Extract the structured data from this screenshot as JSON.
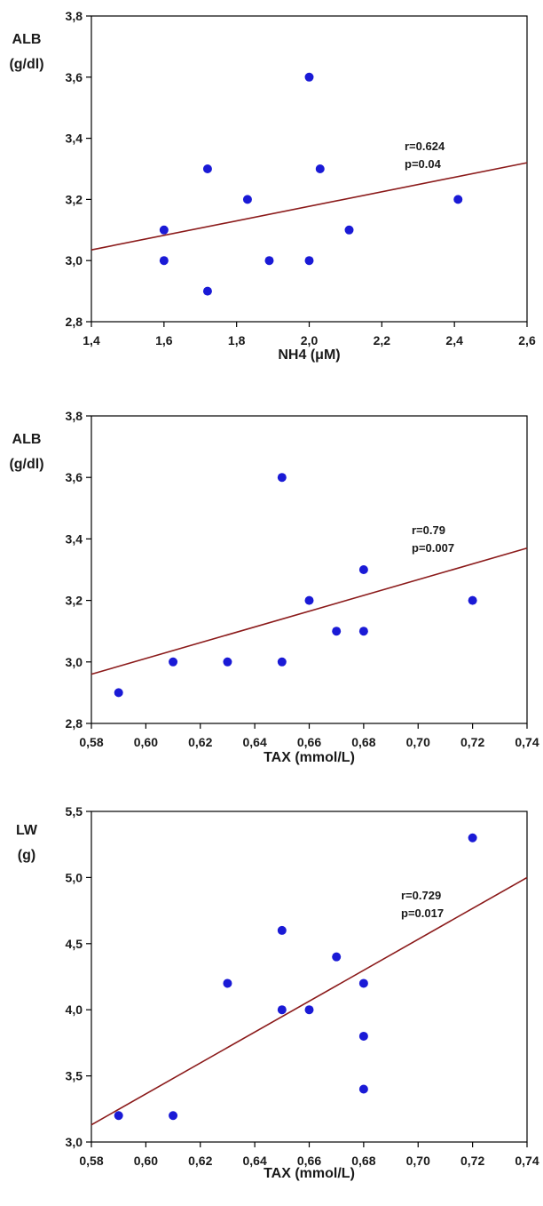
{
  "colors": {
    "point": "#1a1ad6",
    "regression": "#8b1a1a",
    "axis": "#000000",
    "background": "#ffffff"
  },
  "chart_data": [
    {
      "type": "scatter",
      "ylabel": [
        "ALB",
        "(g/dl)"
      ],
      "xlabel": "NH4 (μM)",
      "xlim": [
        1.4,
        2.6
      ],
      "ylim": [
        2.8,
        3.8
      ],
      "xticks": [
        1.4,
        1.6,
        1.8,
        2.0,
        2.2,
        2.4,
        2.6
      ],
      "xtick_labels": [
        "1,4",
        "1,6",
        "1,8",
        "2,0",
        "2,2",
        "2,4",
        "2,6"
      ],
      "yticks": [
        2.8,
        3.0,
        3.2,
        3.4,
        3.6,
        3.8
      ],
      "ytick_labels": [
        "2,8",
        "3,0",
        "3,2",
        "3,4",
        "3,6",
        "3,8"
      ],
      "points": [
        [
          1.6,
          3.1
        ],
        [
          1.6,
          3.0
        ],
        [
          1.72,
          3.3
        ],
        [
          1.72,
          2.9
        ],
        [
          1.83,
          3.2
        ],
        [
          1.89,
          3.0
        ],
        [
          2.0,
          3.6
        ],
        [
          2.0,
          3.0
        ],
        [
          2.03,
          3.3
        ],
        [
          2.11,
          3.1
        ],
        [
          2.41,
          3.2
        ]
      ],
      "regression": [
        [
          1.4,
          3.035
        ],
        [
          2.6,
          3.32
        ]
      ],
      "annotation": [
        "r=0.624",
        "p=0.04"
      ],
      "grid": false
    },
    {
      "type": "scatter",
      "ylabel": [
        "ALB",
        "(g/dl)"
      ],
      "xlabel": "TAX (mmol/L)",
      "xlim": [
        0.58,
        0.74
      ],
      "ylim": [
        2.8,
        3.8
      ],
      "xticks": [
        0.58,
        0.6,
        0.62,
        0.64,
        0.66,
        0.68,
        0.7,
        0.72,
        0.74
      ],
      "xtick_labels": [
        "0,58",
        "0,60",
        "0,62",
        "0,64",
        "0,66",
        "0,68",
        "0,70",
        "0,72",
        "0,74"
      ],
      "yticks": [
        2.8,
        3.0,
        3.2,
        3.4,
        3.6,
        3.8
      ],
      "ytick_labels": [
        "2,8",
        "3,0",
        "3,2",
        "3,4",
        "3,6",
        "3,8"
      ],
      "points": [
        [
          0.59,
          2.9
        ],
        [
          0.61,
          3.0
        ],
        [
          0.63,
          3.0
        ],
        [
          0.65,
          3.6
        ],
        [
          0.65,
          3.0
        ],
        [
          0.66,
          3.2
        ],
        [
          0.67,
          3.1
        ],
        [
          0.68,
          3.3
        ],
        [
          0.68,
          3.1
        ],
        [
          0.72,
          3.2
        ]
      ],
      "regression": [
        [
          0.58,
          2.96
        ],
        [
          0.74,
          3.37
        ]
      ],
      "annotation": [
        "r=0.79",
        "p=0.007"
      ],
      "grid": false
    },
    {
      "type": "scatter",
      "ylabel": [
        "LW",
        "(g)"
      ],
      "xlabel": "TAX (mmol/L)",
      "xlim": [
        0.58,
        0.74
      ],
      "ylim": [
        3.0,
        5.5
      ],
      "xticks": [
        0.58,
        0.6,
        0.62,
        0.64,
        0.66,
        0.68,
        0.7,
        0.72,
        0.74
      ],
      "xtick_labels": [
        "0,58",
        "0,60",
        "0,62",
        "0,64",
        "0,66",
        "0,68",
        "0,70",
        "0,72",
        "0,74"
      ],
      "yticks": [
        3.0,
        3.5,
        4.0,
        4.5,
        5.0,
        5.5
      ],
      "ytick_labels": [
        "3,0",
        "3,5",
        "4,0",
        "4,5",
        "5,0",
        "5,5"
      ],
      "points": [
        [
          0.59,
          3.2
        ],
        [
          0.61,
          3.2
        ],
        [
          0.63,
          4.2
        ],
        [
          0.65,
          4.6
        ],
        [
          0.65,
          4.0
        ],
        [
          0.66,
          4.0
        ],
        [
          0.67,
          4.4
        ],
        [
          0.68,
          4.2
        ],
        [
          0.68,
          3.8
        ],
        [
          0.68,
          3.4
        ],
        [
          0.72,
          5.3
        ]
      ],
      "regression": [
        [
          0.58,
          3.13
        ],
        [
          0.74,
          5.0
        ]
      ],
      "annotation": [
        "r=0.729",
        "p=0.017"
      ],
      "grid": false
    }
  ]
}
